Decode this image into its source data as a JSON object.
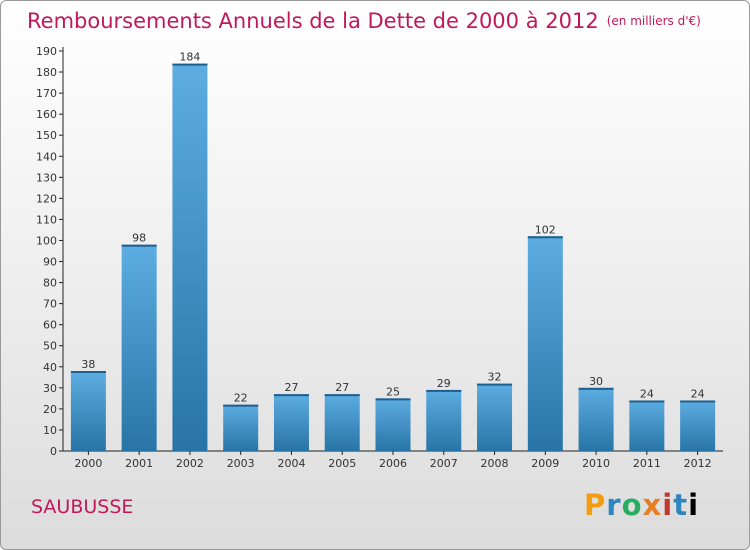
{
  "header": {
    "title": "Remboursements Annuels de la Dette de 2000 à 2012",
    "unit": "(en milliers d'€)"
  },
  "footer": {
    "commune": "SAUBUSSE",
    "logo": [
      "P",
      "r",
      "o",
      "x",
      "i",
      "t",
      "i"
    ]
  },
  "colors": {
    "title": "#c2185b",
    "bar_top": "#5dade2",
    "bar_bottom": "#2874a6"
  },
  "chart_data": {
    "type": "bar",
    "categories": [
      "2000",
      "2001",
      "2002",
      "2003",
      "2004",
      "2005",
      "2006",
      "2007",
      "2008",
      "2009",
      "2010",
      "2011",
      "2012"
    ],
    "values": [
      38,
      98,
      184,
      22,
      27,
      27,
      25,
      29,
      32,
      102,
      30,
      24,
      24
    ],
    "title": "Remboursements Annuels de la Dette de 2000 à 2012",
    "ylim": [
      0,
      190
    ],
    "yticks": [
      0,
      10,
      20,
      30,
      40,
      50,
      60,
      70,
      80,
      90,
      100,
      110,
      120,
      130,
      140,
      150,
      160,
      170,
      180,
      190
    ],
    "grid": false,
    "data_labels": true
  }
}
